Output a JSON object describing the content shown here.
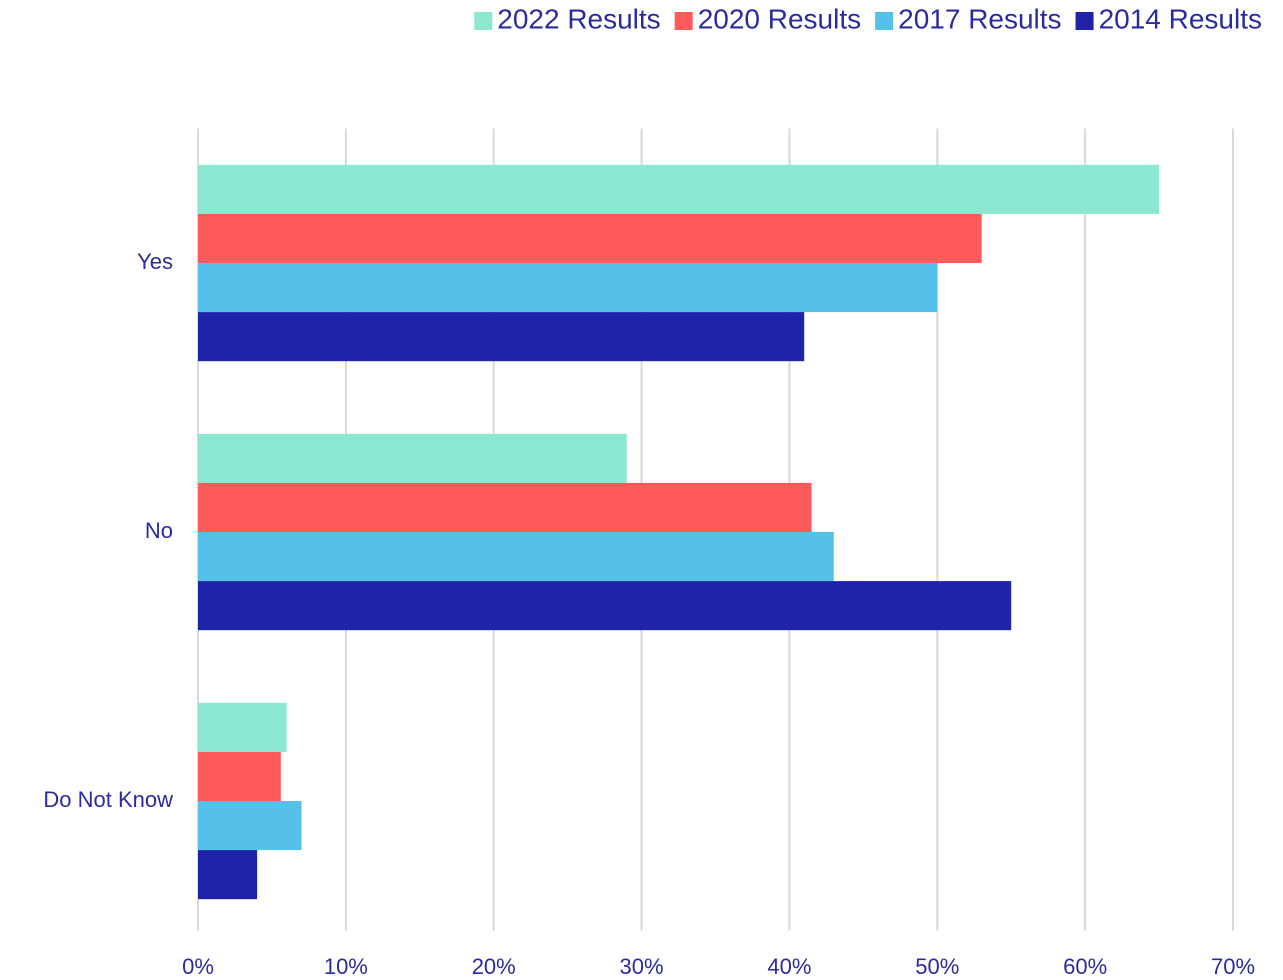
{
  "chart_data": {
    "type": "bar",
    "orientation": "horizontal",
    "categories": [
      "Yes",
      "No",
      "Do Not Know"
    ],
    "series": [
      {
        "name": "2022 Results",
        "color": "#8de8d2",
        "values": [
          65,
          29,
          6
        ]
      },
      {
        "name": "2020 Results",
        "color": "#ff5a5a",
        "values": [
          53,
          41.5,
          5.6
        ]
      },
      {
        "name": "2017 Results",
        "color": "#56c1e8",
        "values": [
          50,
          43,
          7
        ]
      },
      {
        "name": "2014 Results",
        "color": "#1f23a8",
        "values": [
          41,
          55,
          4
        ]
      }
    ],
    "xlim": [
      0,
      70
    ],
    "xticks": [
      {
        "value": 0,
        "label": "0%"
      },
      {
        "value": 10,
        "label": "10%"
      },
      {
        "value": 20,
        "label": "20%"
      },
      {
        "value": 30,
        "label": "30%"
      },
      {
        "value": 40,
        "label": "40%"
      },
      {
        "value": 50,
        "label": "50%"
      },
      {
        "value": 60,
        "label": "60%"
      },
      {
        "value": 70,
        "label": "70%"
      }
    ],
    "grid": true,
    "legend": "top-right"
  }
}
